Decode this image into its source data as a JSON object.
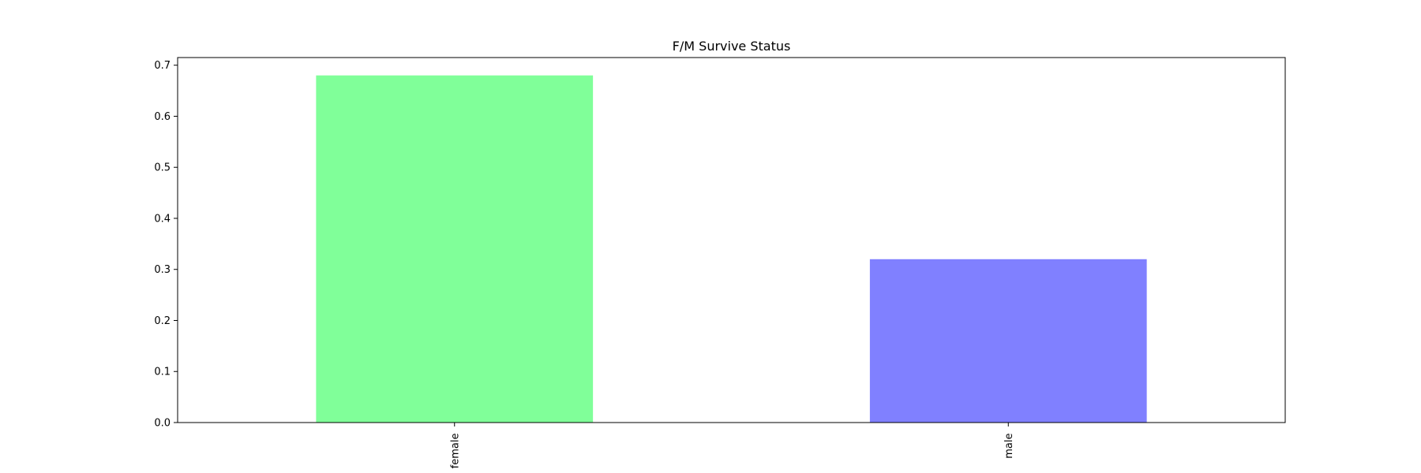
{
  "chart_data": {
    "type": "bar",
    "title": "F/M Survive Status",
    "xlabel": "",
    "ylabel": "",
    "categories": [
      "female",
      "male"
    ],
    "values": [
      0.68,
      0.32
    ],
    "bar_colors": [
      "#80ff99",
      "#8080ff"
    ],
    "ylim": [
      0,
      0.715
    ],
    "yticks": [
      0.0,
      0.1,
      0.2,
      0.3,
      0.4,
      0.5,
      0.6,
      0.7
    ],
    "ytick_labels": [
      "0.0",
      "0.1",
      "0.2",
      "0.3",
      "0.4",
      "0.5",
      "0.6",
      "0.7"
    ],
    "xtick_rotation": "vertical",
    "grid": false,
    "legend": "none"
  }
}
